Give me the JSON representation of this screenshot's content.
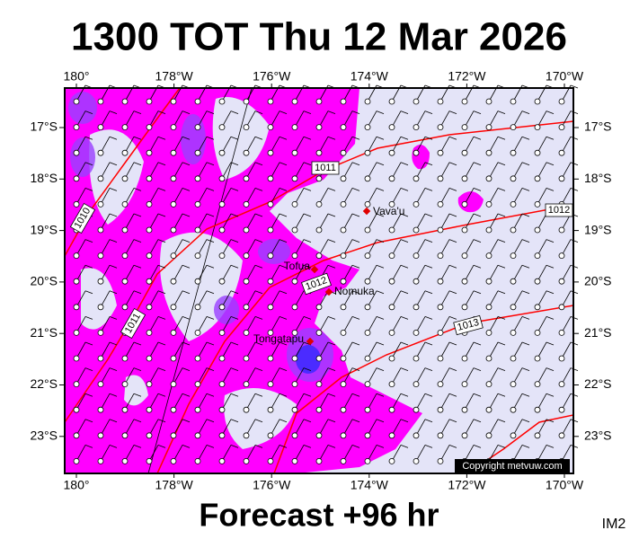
{
  "title": "1300 TOT Thu 12 Mar 2026",
  "footer": "Forecast +96 hr",
  "image_id": "IM2",
  "map": {
    "lon_ticks": [
      {
        "value": 180,
        "label": "180°"
      },
      {
        "value": 178,
        "label": "178°W"
      },
      {
        "value": 176,
        "label": "176°W"
      },
      {
        "value": 174,
        "label": "174°W"
      },
      {
        "value": 172,
        "label": "172°W"
      },
      {
        "value": 170,
        "label": "170°W"
      }
    ],
    "lat_ticks": [
      {
        "value": 17,
        "label": "17°S"
      },
      {
        "value": 18,
        "label": "18°S"
      },
      {
        "value": 19,
        "label": "19°S"
      },
      {
        "value": 20,
        "label": "20°S"
      },
      {
        "value": 21,
        "label": "21°S"
      },
      {
        "value": 22,
        "label": "22°S"
      },
      {
        "value": 23,
        "label": "23°S"
      }
    ],
    "places": [
      "Vava'u",
      "Tofua",
      "Nomuka",
      "Tongatapu"
    ],
    "isobar_labels": [
      "1011",
      "1010",
      "1012",
      "1012",
      "1013",
      "1011"
    ],
    "copyright": "Copyright metvuw.com"
  }
}
